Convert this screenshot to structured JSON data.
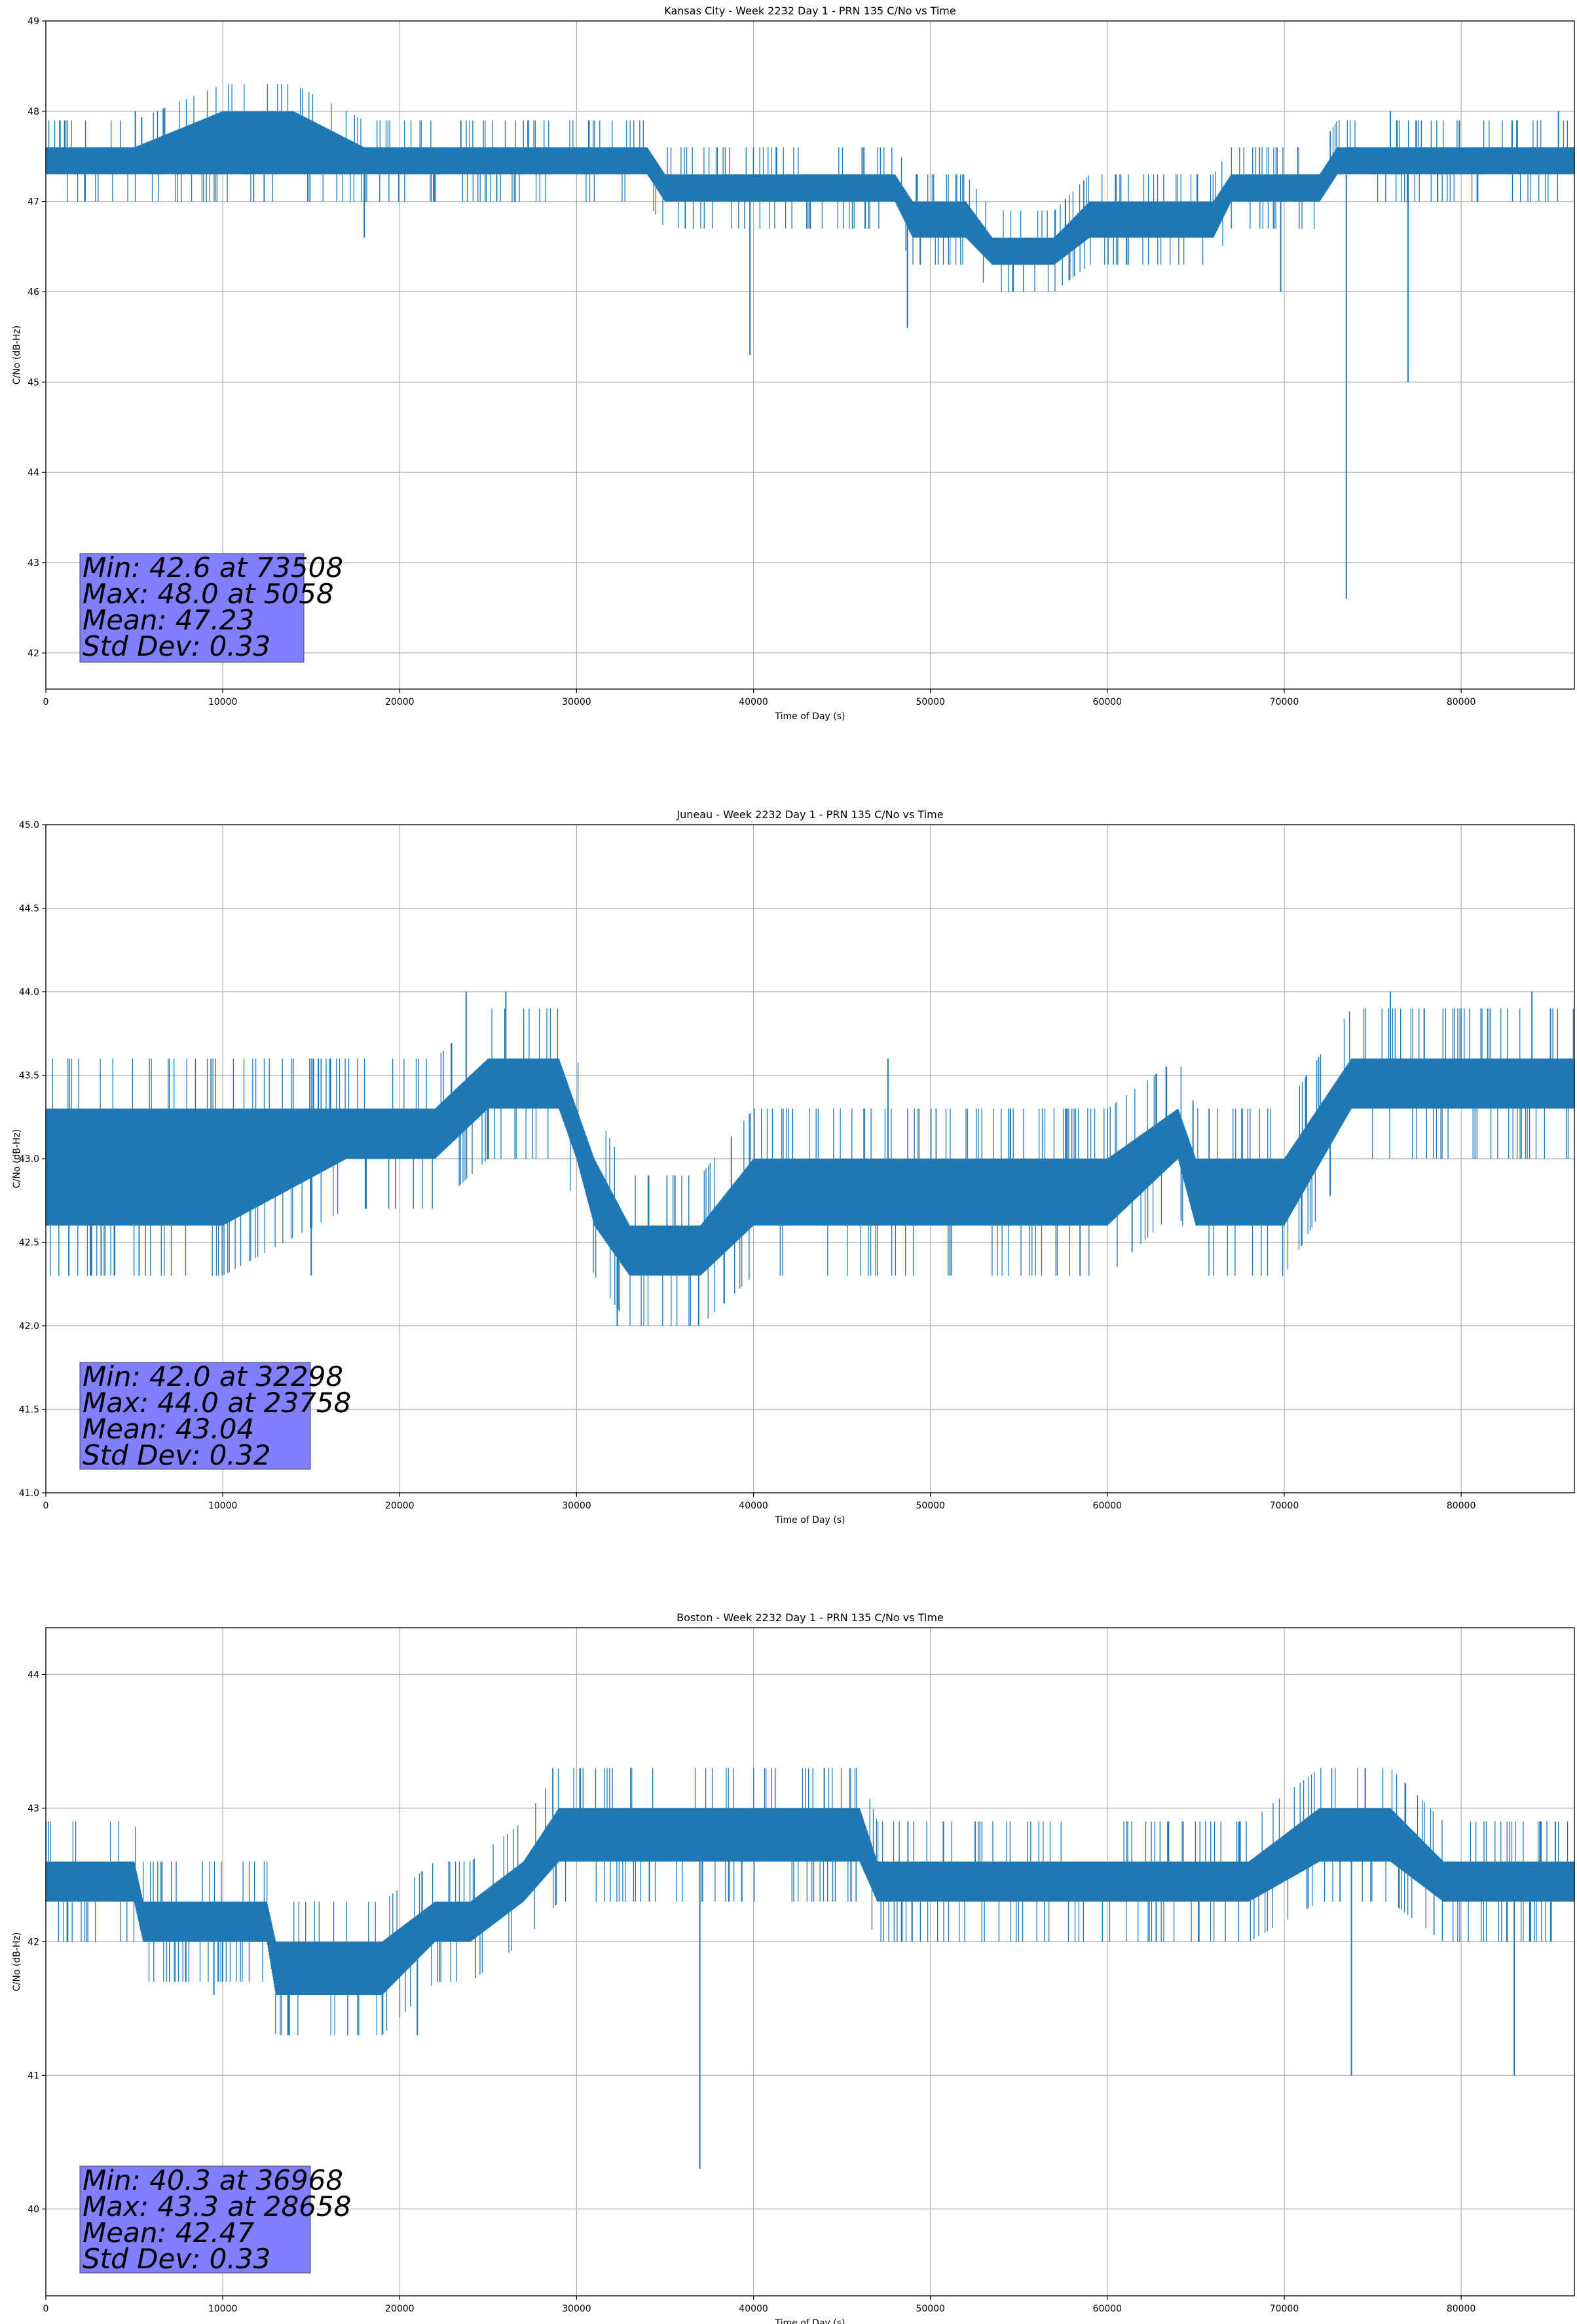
{
  "chart_data": [
    {
      "type": "line",
      "title": "Kansas City - Week 2232 Day 1 - PRN 135 C/No vs Time",
      "xlabel": "Time of Day (s)",
      "ylabel": "C/No (dB-Hz)",
      "xlim": [
        0,
        86400
      ],
      "ylim": [
        41.6,
        49
      ],
      "xticks": [
        0,
        10000,
        20000,
        30000,
        40000,
        50000,
        60000,
        70000,
        80000
      ],
      "yticks": [
        42,
        43,
        44,
        45,
        46,
        47,
        48,
        49
      ],
      "ytick_labels": [
        "42",
        "43",
        "44",
        "45",
        "46",
        "47",
        "48",
        "49"
      ],
      "grid": true,
      "color": "#1f77b4",
      "series": [
        {
          "x": [
            0,
            5000,
            10000,
            14000,
            18000,
            25000,
            30000,
            34000,
            35000,
            40000,
            45000,
            48000,
            49000,
            52000,
            53500,
            57000,
            59000,
            62000,
            66000,
            67000,
            69500,
            72000,
            73000,
            76000,
            80000,
            83000,
            86400
          ],
          "y_low": [
            47.3,
            47.3,
            47.3,
            47.3,
            47.3,
            47.3,
            47.3,
            47.3,
            47.0,
            47.0,
            47.0,
            47.0,
            46.6,
            46.6,
            46.3,
            46.3,
            46.6,
            46.6,
            46.6,
            47.0,
            47.0,
            47.0,
            47.3,
            47.3,
            47.3,
            47.3,
            47.3
          ],
          "y_high": [
            47.6,
            47.6,
            48.0,
            48.0,
            47.6,
            47.6,
            47.6,
            47.6,
            47.3,
            47.3,
            47.3,
            47.3,
            47.0,
            47.0,
            46.6,
            46.6,
            47.0,
            47.0,
            47.0,
            47.3,
            47.3,
            47.3,
            47.6,
            47.6,
            47.6,
            47.6,
            47.6
          ]
        }
      ],
      "spikes": [
        [
          18000,
          46.6
        ],
        [
          39800,
          45.3
        ],
        [
          48700,
          45.6
        ],
        [
          69800,
          46.0
        ],
        [
          73508,
          42.6
        ],
        [
          77000,
          45.0
        ],
        [
          5058,
          48.0
        ],
        [
          76000,
          48.0
        ],
        [
          85500,
          48.0
        ]
      ],
      "stats": {
        "line1": "Min: 42.6 at 73508",
        "line2": "Max: 48.0 at 5058",
        "line3": "Mean: 47.23",
        "line4": "Std Dev: 0.33"
      },
      "stats_box_color": "#8080ff"
    },
    {
      "type": "line",
      "title": "Juneau - Week 2232 Day 1 - PRN 135 C/No vs Time",
      "xlabel": "Time of Day (s)",
      "ylabel": "C/No (dB-Hz)",
      "xlim": [
        0,
        86400
      ],
      "ylim": [
        41.0,
        45.0
      ],
      "xticks": [
        0,
        10000,
        20000,
        30000,
        40000,
        50000,
        60000,
        70000,
        80000
      ],
      "yticks": [
        41.0,
        41.5,
        42.0,
        42.5,
        43.0,
        43.5,
        44.0,
        44.5,
        45.0
      ],
      "ytick_labels": [
        "41.0",
        "41.5",
        "42.0",
        "42.5",
        "43.0",
        "43.5",
        "44.0",
        "44.5",
        "45.0"
      ],
      "grid": true,
      "color": "#1f77b4",
      "series": [
        {
          "x": [
            0,
            5000,
            10000,
            17000,
            22000,
            25000,
            29000,
            30000,
            31000,
            33000,
            37000,
            40000,
            42000,
            47000,
            50000,
            56000,
            60000,
            64000,
            65000,
            70000,
            73800,
            76000,
            80000,
            86400
          ],
          "y_low": [
            42.6,
            42.6,
            42.6,
            43.0,
            43.0,
            43.3,
            43.3,
            43.0,
            42.6,
            42.3,
            42.3,
            42.6,
            42.6,
            42.6,
            42.6,
            42.6,
            42.6,
            43.0,
            42.6,
            42.6,
            43.3,
            43.3,
            43.3,
            43.3
          ],
          "y_high": [
            43.3,
            43.3,
            43.3,
            43.3,
            43.3,
            43.6,
            43.6,
            43.3,
            43.0,
            42.6,
            42.6,
            43.0,
            43.0,
            43.0,
            43.0,
            43.0,
            43.0,
            43.3,
            43.0,
            43.0,
            43.6,
            43.6,
            43.6,
            43.6
          ]
        }
      ],
      "spikes": [
        [
          1300,
          42.3
        ],
        [
          15000,
          42.3
        ],
        [
          23758,
          44.0
        ],
        [
          26000,
          44.0
        ],
        [
          32298,
          42.0
        ],
        [
          36900,
          42.0
        ],
        [
          47600,
          43.6
        ],
        [
          76000,
          44.0
        ],
        [
          84000,
          44.0
        ]
      ],
      "stats": {
        "line1": "Min: 42.0 at 32298",
        "line2": "Max: 44.0 at 23758",
        "line3": "Mean: 43.04",
        "line4": "Std Dev: 0.32"
      },
      "stats_box_color": "#8080ff"
    },
    {
      "type": "line",
      "title": "Boston - Week 2232 Day 1 - PRN 135 C/No vs Time",
      "xlabel": "Time of Day (s)",
      "ylabel": "C/No (dB-Hz)",
      "xlim": [
        0,
        86400
      ],
      "ylim": [
        39.35,
        44.35
      ],
      "xticks": [
        0,
        10000,
        20000,
        30000,
        40000,
        50000,
        60000,
        70000,
        80000
      ],
      "yticks": [
        40,
        41,
        42,
        43,
        44
      ],
      "ytick_labels": [
        "40",
        "41",
        "42",
        "43",
        "44"
      ],
      "grid": true,
      "color": "#1f77b4",
      "series": [
        {
          "x": [
            0,
            5000,
            5500,
            12500,
            13000,
            19000,
            22000,
            24000,
            27000,
            29000,
            40000,
            46000,
            47000,
            52000,
            56000,
            60000,
            68000,
            72000,
            76000,
            79000,
            86400
          ],
          "y_low": [
            42.3,
            42.3,
            42.0,
            42.0,
            41.6,
            41.6,
            42.0,
            42.0,
            42.3,
            42.6,
            42.6,
            42.6,
            42.3,
            42.3,
            42.3,
            42.3,
            42.3,
            42.6,
            42.6,
            42.3,
            42.3
          ],
          "y_high": [
            42.6,
            42.6,
            42.3,
            42.3,
            42.0,
            42.0,
            42.3,
            42.3,
            42.6,
            43.0,
            43.0,
            43.0,
            42.6,
            42.6,
            42.6,
            42.6,
            42.6,
            43.0,
            43.0,
            42.6,
            42.6
          ]
        }
      ],
      "spikes": [
        [
          9500,
          41.6
        ],
        [
          21000,
          41.3
        ],
        [
          28658,
          43.3
        ],
        [
          36968,
          40.3
        ],
        [
          44000,
          43.3
        ],
        [
          73800,
          41.0
        ],
        [
          83000,
          41.0
        ]
      ],
      "stats": {
        "line1": "Min: 40.3 at 36968",
        "line2": "Max: 43.3 at 28658",
        "line3": "Mean: 42.47",
        "line4": "Std Dev: 0.33"
      },
      "stats_box_color": "#8080ff"
    }
  ]
}
